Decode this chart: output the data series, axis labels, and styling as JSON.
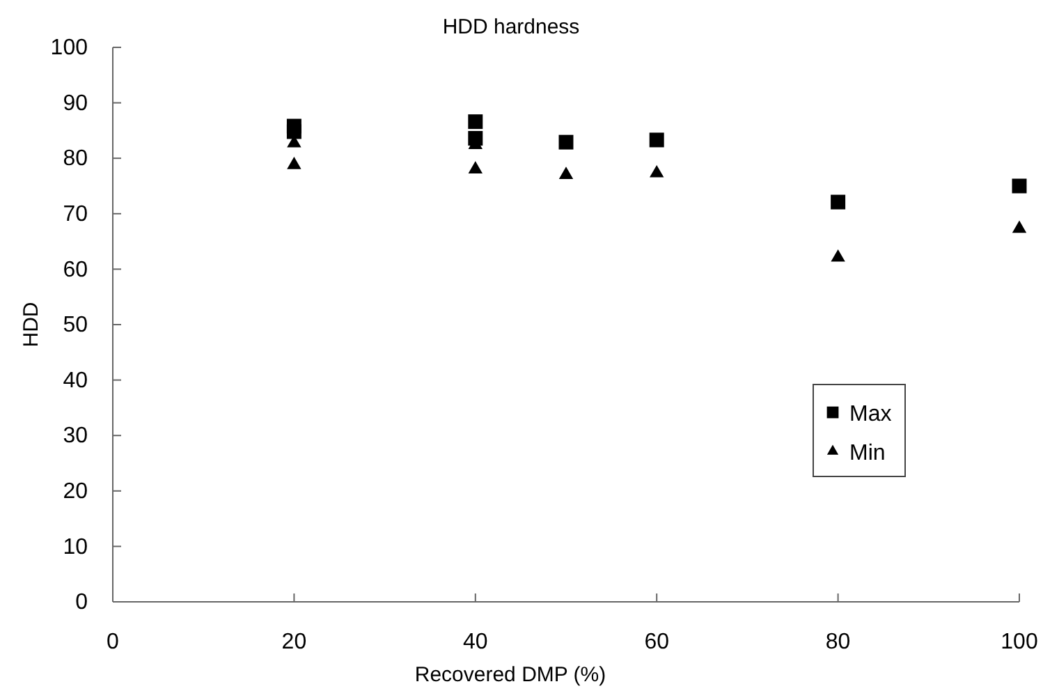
{
  "chart_data": {
    "type": "scatter",
    "title": "HDD hardness",
    "xlabel": "Recovered DMP (%)",
    "ylabel": "HDD",
    "xlim": [
      0,
      100
    ],
    "xticks": [
      0,
      20,
      40,
      60,
      80,
      100
    ],
    "ylim": [
      0,
      100
    ],
    "yticks": [
      0,
      10,
      20,
      30,
      40,
      50,
      60,
      70,
      80,
      90,
      100
    ],
    "grid": false,
    "legend": "bottom right",
    "series": [
      {
        "name": "Max",
        "color": "#000000",
        "marker": "square",
        "x": [
          20,
          20,
          40,
          40,
          50,
          60,
          80,
          100
        ],
        "values": [
          85.8,
          84.8,
          86.6,
          83.6,
          82.9,
          83.3,
          72.1,
          75.0
        ]
      },
      {
        "name": "Min",
        "color": "#000000",
        "marker": "triangle",
        "x": [
          20,
          20,
          40,
          40,
          50,
          60,
          80,
          100
        ],
        "values": [
          82.7,
          78.8,
          82.4,
          78.0,
          77.0,
          77.3,
          62.1,
          67.3
        ]
      }
    ]
  }
}
